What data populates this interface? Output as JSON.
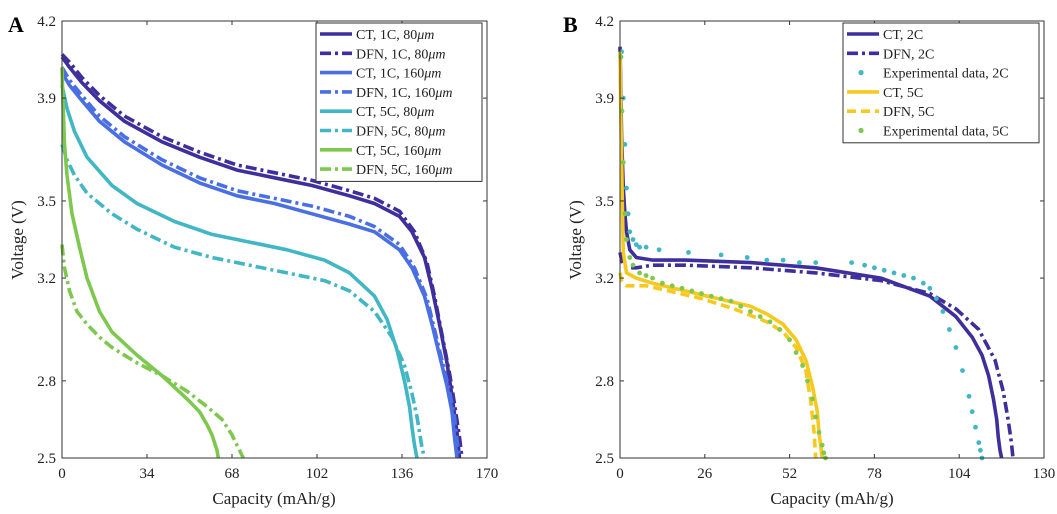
{
  "colors": {
    "ct_80_1c": "#3e2f9c",
    "ct_160_1c": "#4a6fe3",
    "c_5c_80": "#41b6c4",
    "c_5c_160": "#7ec850",
    "ct_2c": "#3e2f9c",
    "exp_2c": "#41b6c4",
    "ct_5c_b": "#f5c91f",
    "exp_5c": "#7ec850",
    "axis": "#333333"
  },
  "chart_data": [
    {
      "panel_label": "A",
      "type": "line",
      "xlabel": "Capacity (mAh/g)",
      "ylabel": "Voltage (V)",
      "xlim": [
        0,
        170
      ],
      "ylim": [
        2.5,
        4.2
      ],
      "xticks": [
        0,
        34,
        68,
        102,
        136,
        170
      ],
      "yticks": [
        2.5,
        2.8,
        3.2,
        3.5,
        3.9,
        4.2
      ],
      "ytick_labels": [
        "2.5",
        "2.8",
        "3.2",
        "3.5",
        "3.9",
        "4.2"
      ],
      "legend_position": "top-right",
      "series": [
        {
          "name": "CT, 1C, 80μm",
          "label_prefix": "CT, 1C, 80",
          "label_unit": "μm",
          "color_key": "ct_80_1c",
          "style": "solid",
          "x": [
            0,
            3,
            8,
            15,
            25,
            40,
            55,
            70,
            85,
            100,
            115,
            125,
            135,
            140,
            145,
            148,
            151,
            154,
            156,
            158,
            159
          ],
          "y": [
            4.06,
            4.02,
            3.96,
            3.89,
            3.81,
            3.73,
            3.67,
            3.62,
            3.59,
            3.56,
            3.52,
            3.49,
            3.44,
            3.38,
            3.28,
            3.16,
            3.02,
            2.87,
            2.74,
            2.6,
            2.5
          ]
        },
        {
          "name": "DFN, 1C, 80μm",
          "label_prefix": "DFN, 1C, 80",
          "label_unit": "μm",
          "color_key": "ct_80_1c",
          "style": "dashdot",
          "x": [
            0,
            3,
            8,
            15,
            25,
            40,
            55,
            70,
            85,
            100,
            115,
            125,
            135,
            141,
            146,
            149,
            152,
            155,
            157,
            159,
            160
          ],
          "y": [
            4.07,
            4.04,
            3.98,
            3.91,
            3.83,
            3.75,
            3.69,
            3.64,
            3.61,
            3.58,
            3.54,
            3.51,
            3.46,
            3.38,
            3.26,
            3.13,
            2.98,
            2.83,
            2.71,
            2.58,
            2.5
          ]
        },
        {
          "name": "CT, 1C, 160μm",
          "label_prefix": "CT, 1C, 160",
          "label_unit": "μm",
          "color_key": "ct_160_1c",
          "style": "solid",
          "x": [
            0,
            3,
            8,
            15,
            25,
            40,
            55,
            70,
            85,
            100,
            115,
            125,
            135,
            140,
            145,
            148,
            151,
            154,
            156,
            157,
            158
          ],
          "y": [
            4.0,
            3.95,
            3.89,
            3.81,
            3.73,
            3.64,
            3.57,
            3.52,
            3.49,
            3.45,
            3.41,
            3.38,
            3.31,
            3.24,
            3.13,
            3.02,
            2.9,
            2.78,
            2.68,
            2.58,
            2.5
          ]
        },
        {
          "name": "DFN, 1C, 160μm",
          "label_prefix": "DFN, 1C, 160",
          "label_unit": "μm",
          "color_key": "ct_160_1c",
          "style": "dashdot",
          "x": [
            0,
            3,
            8,
            15,
            25,
            40,
            55,
            70,
            85,
            100,
            115,
            125,
            135,
            141,
            146,
            149,
            152,
            155,
            157,
            158,
            159
          ],
          "y": [
            4.02,
            3.97,
            3.91,
            3.83,
            3.75,
            3.66,
            3.59,
            3.54,
            3.51,
            3.48,
            3.44,
            3.4,
            3.33,
            3.24,
            3.12,
            3.0,
            2.88,
            2.76,
            2.66,
            2.57,
            2.5
          ]
        },
        {
          "name": "CT, 5C, 80μm",
          "label_prefix": "CT, 5C, 80",
          "label_unit": "μm",
          "color_key": "c_5c_80",
          "style": "solid",
          "x": [
            0,
            2,
            5,
            10,
            20,
            30,
            45,
            60,
            75,
            90,
            105,
            115,
            125,
            130,
            134,
            137,
            139,
            140,
            141,
            142
          ],
          "y": [
            3.95,
            3.86,
            3.77,
            3.67,
            3.56,
            3.49,
            3.42,
            3.37,
            3.34,
            3.31,
            3.27,
            3.22,
            3.13,
            3.04,
            2.92,
            2.8,
            2.7,
            2.62,
            2.55,
            2.5
          ]
        },
        {
          "name": "DFN, 5C, 80μm",
          "label_prefix": "DFN, 5C, 80",
          "label_unit": "μm",
          "color_key": "c_5c_80",
          "style": "dashdot",
          "x": [
            0,
            2,
            5,
            10,
            20,
            30,
            45,
            60,
            75,
            90,
            105,
            115,
            125,
            132,
            137,
            140,
            142,
            143,
            144,
            145
          ],
          "y": [
            3.72,
            3.66,
            3.6,
            3.53,
            3.45,
            3.39,
            3.32,
            3.28,
            3.25,
            3.22,
            3.19,
            3.15,
            3.07,
            2.97,
            2.86,
            2.75,
            2.66,
            2.6,
            2.54,
            2.5
          ]
        },
        {
          "name": "CT, 5C, 160μm",
          "label_prefix": "CT, 5C, 160",
          "label_unit": "μm",
          "color_key": "c_5c_160",
          "style": "solid",
          "x": [
            0,
            0.5,
            1,
            2,
            4,
            7,
            10,
            15,
            20,
            30,
            40,
            50,
            55,
            58,
            60,
            61,
            62,
            62.5
          ],
          "y": [
            4.02,
            3.85,
            3.72,
            3.6,
            3.45,
            3.32,
            3.2,
            3.07,
            2.99,
            2.9,
            2.82,
            2.73,
            2.68,
            2.63,
            2.59,
            2.56,
            2.53,
            2.5
          ]
        },
        {
          "name": "DFN, 5C, 160μm",
          "label_prefix": "DFN, 5C, 160",
          "label_unit": "μm",
          "color_key": "c_5c_160",
          "style": "dashdot",
          "x": [
            0,
            1,
            3,
            6,
            10,
            15,
            20,
            30,
            40,
            50,
            58,
            64,
            68,
            70,
            71.5,
            72.5
          ],
          "y": [
            3.33,
            3.24,
            3.15,
            3.07,
            3.02,
            2.97,
            2.93,
            2.87,
            2.82,
            2.76,
            2.7,
            2.65,
            2.59,
            2.55,
            2.52,
            2.5
          ]
        }
      ]
    },
    {
      "panel_label": "B",
      "type": "line",
      "xlabel": "Capacity (mAh/g)",
      "ylabel": "Voltage (V)",
      "xlim": [
        0,
        130
      ],
      "ylim": [
        2.5,
        4.2
      ],
      "xticks": [
        0,
        26,
        52,
        78,
        104,
        130
      ],
      "yticks": [
        2.5,
        2.8,
        3.2,
        3.5,
        3.9,
        4.2
      ],
      "ytick_labels": [
        "2.5",
        "2.8",
        "3.2",
        "3.5",
        "3.9",
        "4.2"
      ],
      "legend_position": "top-right",
      "series": [
        {
          "name": "CT, 2C",
          "color_key": "ct_2c",
          "style": "solid",
          "x": [
            0,
            0.2,
            0.5,
            1,
            1.5,
            2,
            3,
            5,
            10,
            20,
            40,
            60,
            80,
            95,
            103,
            108,
            111,
            113,
            114.5,
            115.5,
            116,
            116.5,
            117
          ],
          "y": [
            4.1,
            3.95,
            3.75,
            3.55,
            3.45,
            3.38,
            3.31,
            3.28,
            3.27,
            3.27,
            3.26,
            3.24,
            3.2,
            3.13,
            3.05,
            2.97,
            2.9,
            2.82,
            2.73,
            2.65,
            2.58,
            2.53,
            2.5
          ]
        },
        {
          "name": "DFN, 2C",
          "color_key": "ct_2c",
          "style": "dashdot",
          "x": [
            0,
            0.5,
            1,
            2,
            5,
            10,
            20,
            40,
            60,
            80,
            95,
            103,
            110,
            115,
            117.5,
            119,
            120,
            120.5
          ],
          "y": [
            3.3,
            3.27,
            3.25,
            3.24,
            3.24,
            3.25,
            3.25,
            3.24,
            3.22,
            3.19,
            3.14,
            3.08,
            3.0,
            2.88,
            2.76,
            2.65,
            2.56,
            2.5
          ]
        },
        {
          "name": "Experimental data, 2C",
          "color_key": "exp_2c",
          "style": "dots",
          "x": [
            0.5,
            1,
            1.5,
            2,
            2.5,
            3,
            4,
            5,
            6,
            8,
            12,
            21,
            31,
            39,
            45,
            50,
            55,
            60,
            71,
            75,
            78,
            81,
            84,
            87,
            90,
            93,
            95,
            97,
            99,
            101,
            103,
            105,
            107,
            108,
            109,
            110,
            110.5,
            111
          ],
          "y": [
            4.08,
            3.9,
            3.72,
            3.55,
            3.45,
            3.38,
            3.35,
            3.33,
            3.32,
            3.32,
            3.31,
            3.3,
            3.29,
            3.28,
            3.27,
            3.27,
            3.26,
            3.26,
            3.26,
            3.25,
            3.24,
            3.23,
            3.22,
            3.21,
            3.2,
            3.18,
            3.16,
            3.12,
            3.07,
            3.0,
            2.93,
            2.84,
            2.74,
            2.68,
            2.62,
            2.56,
            2.53,
            2.5
          ]
        },
        {
          "name": "CT, 5C",
          "color_key": "ct_5c_b",
          "style": "solid",
          "x": [
            0,
            0.3,
            0.7,
            1,
            2,
            5,
            10,
            20,
            30,
            40,
            45,
            50,
            54,
            57,
            59,
            60.5,
            61,
            61.5,
            62
          ],
          "y": [
            4.08,
            3.8,
            3.5,
            3.3,
            3.22,
            3.2,
            3.18,
            3.15,
            3.12,
            3.09,
            3.06,
            3.02,
            2.96,
            2.88,
            2.78,
            2.68,
            2.6,
            2.55,
            2.5
          ]
        },
        {
          "name": "DFN, 5C",
          "color_key": "ct_5c_b",
          "style": "dashed",
          "x": [
            0,
            0.5,
            1,
            2,
            4,
            8,
            15,
            25,
            35,
            45,
            50,
            54,
            57,
            58.5,
            59.5,
            60
          ],
          "y": [
            3.22,
            3.19,
            3.18,
            3.17,
            3.17,
            3.17,
            3.15,
            3.12,
            3.08,
            3.03,
            2.99,
            2.93,
            2.84,
            2.72,
            2.6,
            2.5
          ]
        },
        {
          "name": "Experimental data, 5C",
          "color_key": "exp_5c",
          "style": "dots",
          "x": [
            0.3,
            0.6,
            1,
            1.5,
            2,
            3,
            4,
            6,
            8,
            10,
            13,
            16,
            19,
            22,
            25,
            28,
            31,
            34,
            37,
            40,
            43,
            46,
            49,
            52,
            54,
            56,
            57.5,
            59,
            60,
            61,
            62,
            62.5,
            63
          ],
          "y": [
            4.06,
            3.85,
            3.65,
            3.45,
            3.35,
            3.28,
            3.25,
            3.22,
            3.21,
            3.2,
            3.18,
            3.17,
            3.16,
            3.15,
            3.14,
            3.13,
            3.12,
            3.11,
            3.09,
            3.07,
            3.05,
            3.03,
            3.0,
            2.96,
            2.91,
            2.86,
            2.8,
            2.73,
            2.66,
            2.6,
            2.55,
            2.52,
            2.5
          ]
        }
      ]
    }
  ]
}
